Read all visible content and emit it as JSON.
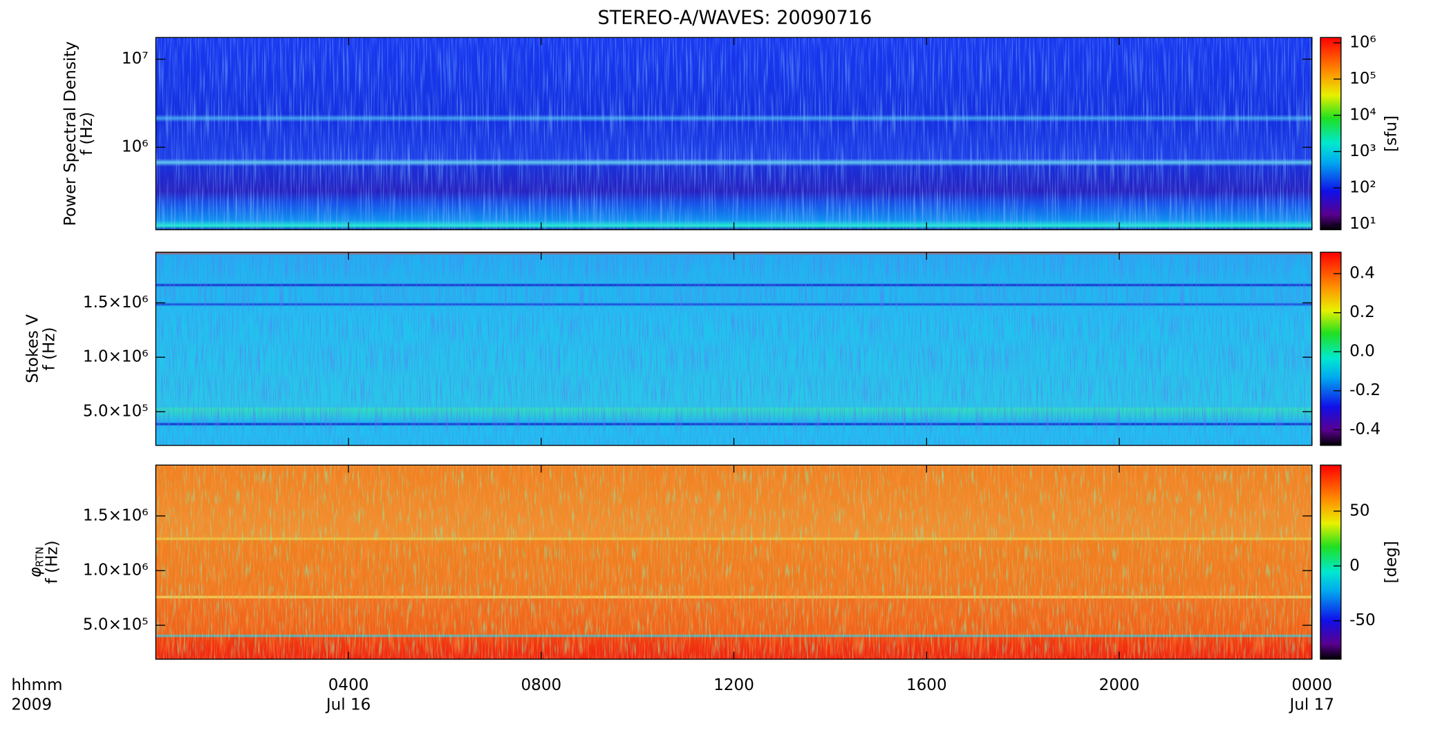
{
  "chart_data": [
    {
      "type": "heatmap",
      "title": "STEREO-A/WAVES: 20090716",
      "ylabel": "Power Spectral Density",
      "ylabel_unit": "f (Hz)",
      "ylog": true,
      "ylim": [
        116000,
        17600000
      ],
      "yticks": [
        {
          "value": 1000000,
          "label": "10⁶"
        },
        {
          "value": 10000000,
          "label": "10⁷"
        }
      ],
      "colorbar": {
        "log": true,
        "lim": [
          7,
          1400000
        ],
        "label": "[sfu]",
        "ticks": [
          {
            "value": 10,
            "label": "10¹"
          },
          {
            "value": 100,
            "label": "10²"
          },
          {
            "value": 1000,
            "label": "10³"
          },
          {
            "value": 10000,
            "label": "10⁴"
          },
          {
            "value": 100000,
            "label": "10⁵"
          },
          {
            "value": 1000000,
            "label": "10⁶"
          }
        ]
      }
    },
    {
      "type": "heatmap",
      "ylabel": "Stokes V",
      "ylabel_unit": "f (Hz)",
      "ylim": [
        190000,
        1965000
      ],
      "yticks": [
        {
          "value": 500000,
          "label": "5.0×10⁵"
        },
        {
          "value": 1000000,
          "label": "1.0×10⁶"
        },
        {
          "value": 1500000,
          "label": "1.5×10⁶"
        }
      ],
      "colorbar": {
        "lim": [
          -0.48,
          0.51
        ],
        "ticks": [
          -0.4,
          -0.2,
          {
            "value": 0,
            "label": "0.0"
          },
          0.2,
          0.4
        ]
      }
    },
    {
      "type": "heatmap",
      "ylabel": "φ",
      "ylabel_sub": "RTN",
      "ylabel_unit": "f (Hz)",
      "ylim": [
        190000,
        1965000
      ],
      "yticks": [
        {
          "value": 500000,
          "label": "5.0×10⁵"
        },
        {
          "value": 1000000,
          "label": "1.0×10⁶"
        },
        {
          "value": 1500000,
          "label": "1.5×10⁶"
        }
      ],
      "colorbar": {
        "lim": [
          -85,
          92
        ],
        "label": "[deg]",
        "ticks": [
          -50,
          0,
          50
        ]
      },
      "xlim": [
        0,
        24
      ],
      "xticks": [
        {
          "value": 4,
          "label": "0400"
        },
        {
          "value": 8,
          "label": "0800"
        },
        {
          "value": 12,
          "label": "1200"
        },
        {
          "value": 16,
          "label": "1600"
        },
        {
          "value": 20,
          "label": "2000"
        },
        {
          "value": 24,
          "label": "0000"
        }
      ],
      "xdate_labels": [
        {
          "value": 4,
          "label": "Jul 16"
        },
        {
          "value": 24,
          "label": "Jul 17"
        }
      ],
      "xaxis_labels": [
        "hhmm",
        "2009"
      ]
    }
  ]
}
